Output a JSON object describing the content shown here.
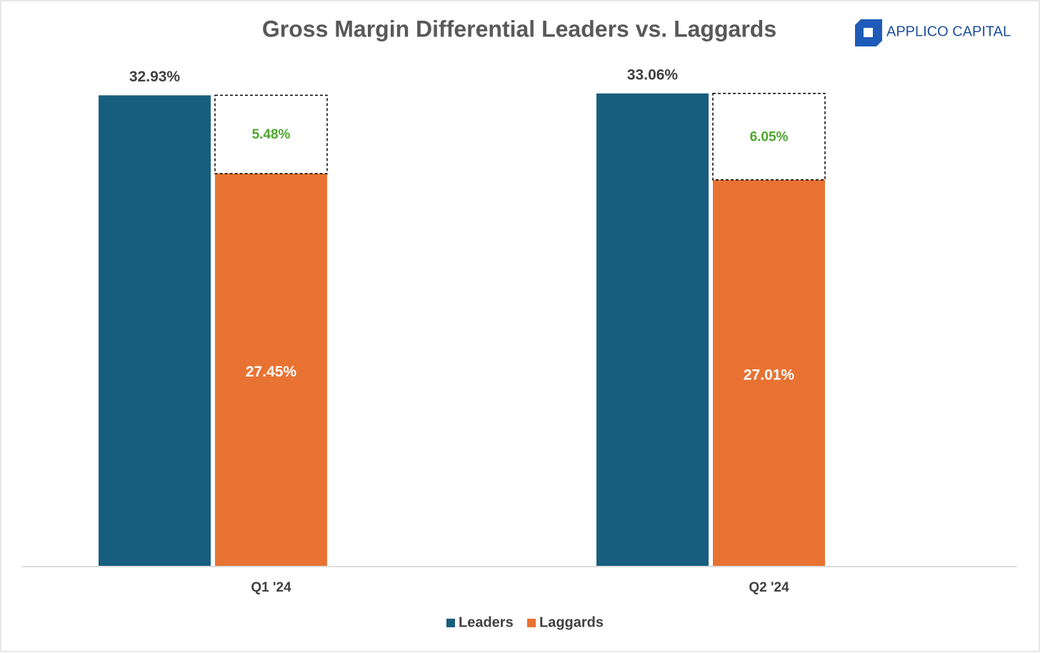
{
  "chart_data": {
    "type": "bar",
    "title": "Gross Margin Differential Leaders vs. Laggards",
    "logo_text": "APPLICO CAPITAL",
    "categories": [
      "Q1 '24",
      "Q2 '24"
    ],
    "series": [
      {
        "name": "Leaders",
        "color": "#175e7e",
        "values": [
          32.93,
          33.06
        ],
        "value_labels": [
          "32.93%",
          "33.06%"
        ]
      },
      {
        "name": "Laggards",
        "color": "#e87232",
        "values": [
          27.45,
          27.01
        ],
        "value_labels": [
          "27.45%",
          "27.01%"
        ]
      }
    ],
    "differences": {
      "color": "#4ea72e",
      "values": [
        5.48,
        6.05
      ],
      "value_labels": [
        "5.48%",
        "6.05%"
      ]
    },
    "ylim": [
      0,
      35
    ]
  }
}
